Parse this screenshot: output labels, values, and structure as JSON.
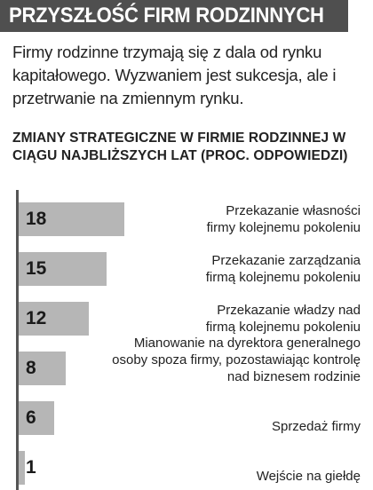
{
  "header": {
    "title": "PRZYSZŁOŚĆ FIRM RODZINNYCH"
  },
  "lead": "Firmy rodzinne trzymają się z dala od rynku kapitałowego. Wyzwaniem jest sukcesja, ale i przetrwanie na zmiennym rynku.",
  "chart_title": "ZMIANY STRATEGICZNE W FIRMIE RODZINNEJ W CIĄGU NAJBLIŻSZYCH LAT (PROC. ODPOWIEDZI)",
  "colors": {
    "header_bg": "#4f4f4f",
    "bar": "#b6b6b6",
    "axis": "#555555"
  },
  "chart_data": {
    "type": "bar",
    "orientation": "horizontal",
    "title": "ZMIANY STRATEGICZNE W FIRMIE RODZINNEJ W CIĄGU NAJBLIŻSZYCH LAT (PROC. ODPOWIEDZI)",
    "categories": [
      "Przekazanie własności firmy kolejnemu pokoleniu",
      "Przekazanie zarządzania firmą kolejnemu pokoleniu",
      "Przekazanie władzy nad firmą kolejnemu pokoleniu",
      "Mianowanie na dyrektora generalnego osoby spoza firmy, pozostawiając kontrolę nad biznesem rodzinie",
      "Sprzedaż firmy",
      "Wejście na giełdę"
    ],
    "labels": [
      "Przekazanie własności\nfirmy kolejnemu pokoleniu",
      "Przekazanie zarządzania\nfirmą kolejnemu pokoleniu",
      "Przekazanie władzy nad\nfirmą kolejnemu pokoleniu",
      "Mianowanie na dyrektora generalnego\nosoby spoza firmy, pozostawiając kontrolę\nnad biznesem rodzinie",
      "Sprzedaż firmy",
      "Wejście na giełdę"
    ],
    "values": [
      18,
      15,
      12,
      8,
      6,
      1
    ],
    "xlim": [
      0,
      50
    ],
    "grid": false,
    "legend": "none"
  }
}
